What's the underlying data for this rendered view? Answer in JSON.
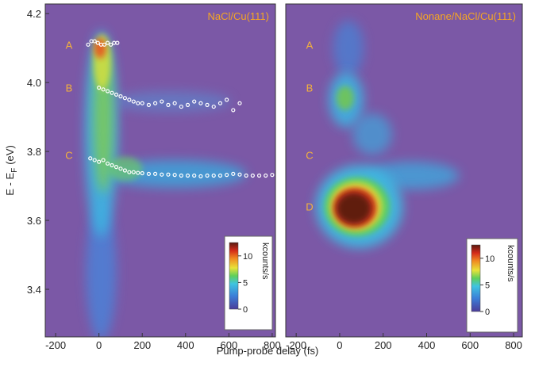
{
  "chart_data": [
    {
      "type": "heatmap",
      "title": "NaCl/Cu(111)",
      "annotations": [
        "A",
        "B",
        "C"
      ],
      "xlim": [
        -248,
        815
      ],
      "ylim": [
        3.262,
        4.228
      ],
      "xticks": [
        -200,
        0,
        200,
        400,
        600,
        800
      ],
      "yticks": [
        3.4,
        3.6,
        3.8,
        {
          "value": 4,
          "label": "4.0"
        },
        4.2
      ],
      "colorbar": {
        "label": "kcounts/s",
        "lim": [
          0,
          12.5
        ],
        "ticks": [
          0,
          5,
          10
        ]
      },
      "series": [
        {
          "color": "#ffffff",
          "x": [
            -50,
            -35,
            -20,
            -5,
            10,
            25,
            40,
            55,
            70,
            85
          ],
          "values": [
            4.11,
            4.12,
            4.12,
            4.115,
            4.11,
            4.11,
            4.115,
            4.11,
            4.115,
            4.115
          ]
        },
        {
          "color": "#ffffff",
          "x": [
            0,
            20,
            40,
            60,
            80,
            100,
            120,
            140,
            160,
            180,
            200,
            230,
            260,
            290,
            320,
            350,
            380,
            410,
            440,
            470,
            500,
            530,
            560,
            590,
            620,
            650
          ],
          "values": [
            3.985,
            3.98,
            3.975,
            3.97,
            3.965,
            3.96,
            3.955,
            3.95,
            3.945,
            3.94,
            3.94,
            3.935,
            3.94,
            3.945,
            3.935,
            3.94,
            3.93,
            3.935,
            3.945,
            3.94,
            3.935,
            3.93,
            3.94,
            3.95,
            3.92,
            3.94
          ]
        },
        {
          "color": "#ffffff",
          "x": [
            -40,
            -20,
            0,
            20,
            40,
            60,
            80,
            100,
            120,
            140,
            160,
            180,
            200,
            230,
            260,
            290,
            320,
            350,
            380,
            410,
            440,
            470,
            500,
            530,
            560,
            590,
            620,
            650,
            680,
            710,
            740,
            770,
            800
          ],
          "values": [
            3.78,
            3.775,
            3.77,
            3.775,
            3.765,
            3.76,
            3.755,
            3.75,
            3.745,
            3.74,
            3.74,
            3.738,
            3.737,
            3.735,
            3.735,
            3.733,
            3.733,
            3.732,
            3.73,
            3.73,
            3.73,
            3.728,
            3.73,
            3.73,
            3.73,
            3.732,
            3.735,
            3.733,
            3.73,
            3.73,
            3.73,
            3.73,
            3.732
          ]
        }
      ]
    },
    {
      "type": "heatmap",
      "title": "Nonane/NaCl/Cu(111)",
      "annotations": [
        "A",
        "B",
        "C",
        "D"
      ],
      "xlim": [
        -248,
        840
      ],
      "ylim": [
        3.262,
        4.228
      ],
      "xticks": [
        -200,
        0,
        200,
        400,
        600,
        800
      ],
      "colorbar": {
        "label": "kcounts/s",
        "lim": [
          0,
          12.5
        ],
        "ticks": [
          0,
          5,
          10
        ]
      },
      "series": []
    }
  ],
  "xlabel": "Pump-probe delay (fs)",
  "ylabel": "E - E",
  "ylabel_sub": "F",
  "ylabel_unit": "(eV)"
}
